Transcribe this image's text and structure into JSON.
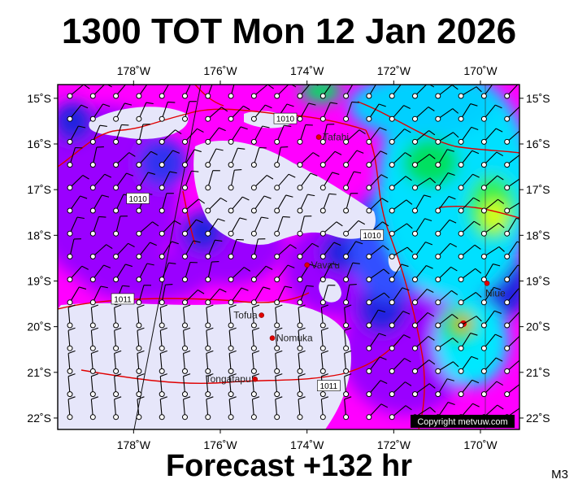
{
  "title": "1300 TOT Mon 12 Jan 2026",
  "forecast_label": "Forecast +132 hr",
  "model_label": "M3",
  "copyright": "Copyright metvuw.com",
  "colors": {
    "background_low": "#e6e6fa",
    "magenta": "#ff00ff",
    "purple": "#9a00ff",
    "blue": "#2020e0",
    "cyan": "#00e8ff",
    "green": "#00e060",
    "yellow": "#e0ff00",
    "isobar": "#e00000",
    "frame": "#000000"
  },
  "map": {
    "lon_min": -179.75,
    "lon_max": -169.1,
    "lat_top": -14.7,
    "lat_bottom": -22.25,
    "lon_ticks": [
      {
        "value": -178,
        "label": "178˚W"
      },
      {
        "value": -176,
        "label": "176˚W"
      },
      {
        "value": -174,
        "label": "174˚W"
      },
      {
        "value": -172,
        "label": "172˚W"
      },
      {
        "value": -170,
        "label": "170˚W"
      }
    ],
    "lat_ticks": [
      {
        "value": -15,
        "label": "15˚S"
      },
      {
        "value": -16,
        "label": "16˚S"
      },
      {
        "value": -17,
        "label": "17˚S"
      },
      {
        "value": -18,
        "label": "18˚S"
      },
      {
        "value": -19,
        "label": "19˚S"
      },
      {
        "value": -20,
        "label": "20˚S"
      },
      {
        "value": -21,
        "label": "21˚S"
      },
      {
        "value": -22,
        "label": "22˚S"
      }
    ],
    "places": [
      {
        "name": "Tafahi",
        "lon": -173.73,
        "lat": -15.85
      },
      {
        "name": "Vava'u",
        "lon": -174.0,
        "lat": -18.65
      },
      {
        "name": "Niue",
        "lon": -169.85,
        "lat": -19.05
      },
      {
        "name": "Tofua",
        "lon": -175.05,
        "lat": -19.75
      },
      {
        "name": "Nomuka",
        "lon": -174.8,
        "lat": -20.25
      },
      {
        "name": "Tongatapu",
        "lon": -175.2,
        "lat": -21.15
      }
    ],
    "isobar_labels": [
      {
        "text": "1010",
        "lon": -174.5,
        "lat": -15.45
      },
      {
        "text": "1010",
        "lon": -177.9,
        "lat": -17.2
      },
      {
        "text": "1010",
        "lon": -172.5,
        "lat": -18.0
      },
      {
        "text": "1011",
        "lon": -178.25,
        "lat": -19.4
      },
      {
        "text": "1011",
        "lon": -173.5,
        "lat": -21.3
      }
    ]
  }
}
